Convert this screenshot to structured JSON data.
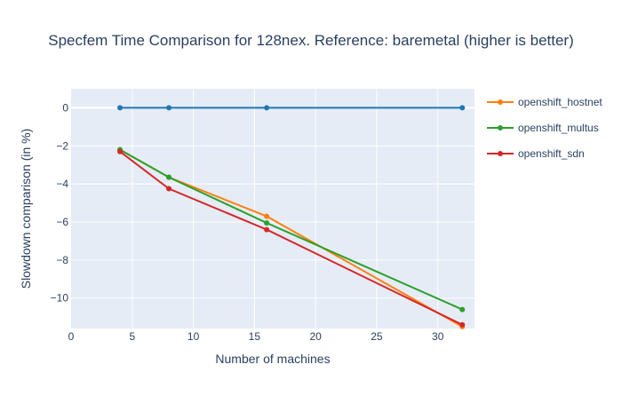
{
  "chart_data": {
    "type": "line",
    "title": "Specfem Time Comparison for 128nex. Reference: baremetal (higher is better)",
    "xlabel": "Number of machines",
    "ylabel": "Slowdown comparison (in %)",
    "xlim": [
      0,
      33
    ],
    "ylim": [
      -11.6,
      1
    ],
    "x_ticks": [
      0,
      5,
      10,
      15,
      20,
      25,
      30
    ],
    "y_ticks": [
      0,
      -2,
      -4,
      -6,
      -8,
      -10
    ],
    "grid": true,
    "legend_position": "right",
    "series": [
      {
        "name": "",
        "color": "#1f77b4",
        "x": [
          4,
          8,
          16,
          32
        ],
        "y": [
          0,
          0,
          0,
          0
        ]
      },
      {
        "name": "openshift_hostnet",
        "color": "#ff7f0e",
        "x": [
          4,
          8,
          16,
          32
        ],
        "y": [
          -2.2,
          -3.65,
          -5.7,
          -11.5
        ]
      },
      {
        "name": "openshift_multus",
        "color": "#2ca02c",
        "x": [
          4,
          8,
          16,
          32
        ],
        "y": [
          -2.2,
          -3.65,
          -6.05,
          -10.6
        ]
      },
      {
        "name": "openshift_sdn",
        "color": "#d62728",
        "x": [
          4,
          8,
          16,
          32
        ],
        "y": [
          -2.3,
          -4.25,
          -6.4,
          -11.4
        ]
      }
    ]
  }
}
